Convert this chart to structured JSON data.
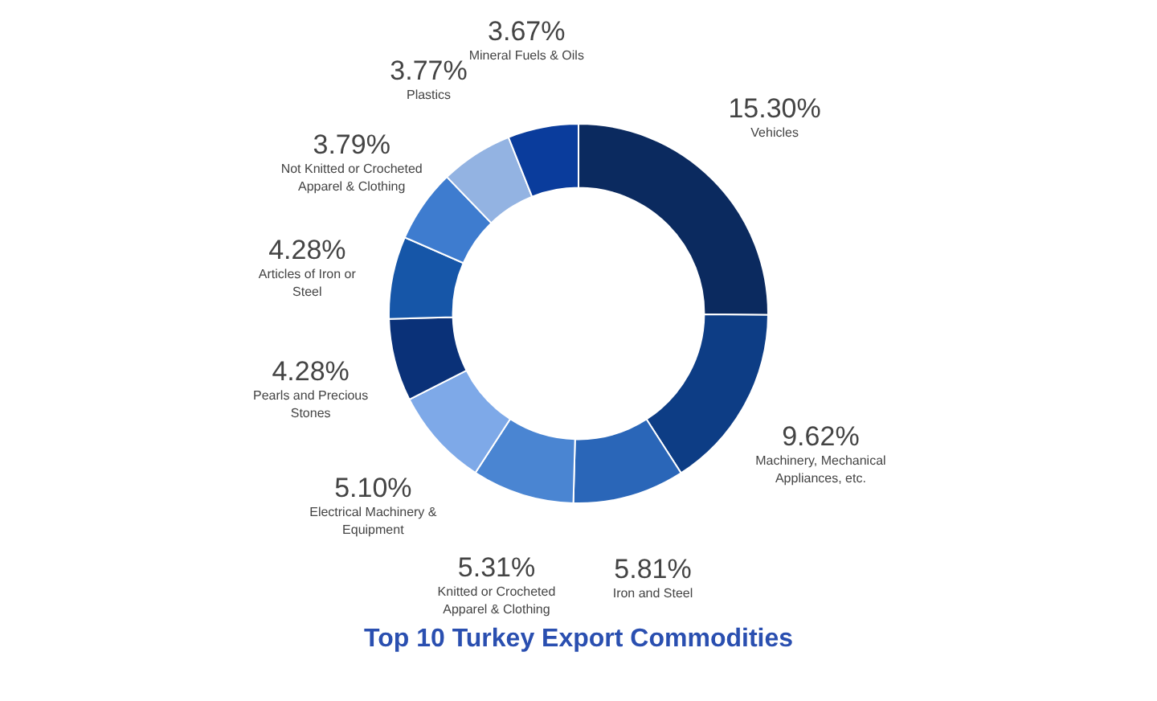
{
  "chart_data": {
    "type": "donut",
    "title": "Top 10 Turkey Export Commodities",
    "categories": [
      "Vehicles",
      "Machinery, Mechanical Appliances, etc.",
      "Iron and Steel",
      "Knitted or Crocheted Apparel & Clothing",
      "Electrical Machinery & Equipment",
      "Pearls and Precious Stones",
      "Articles of Iron or Steel",
      "Not Knitted or Crocheted Apparel & Clothing",
      "Plastics",
      "Mineral Fuels & Oils"
    ],
    "values": [
      15.3,
      9.62,
      5.81,
      5.31,
      5.1,
      4.28,
      4.28,
      3.79,
      3.77,
      3.67
    ],
    "value_labels": [
      "15.30%",
      "9.62%",
      "5.81%",
      "5.31%",
      "5.10%",
      "4.28%",
      "4.28%",
      "3.79%",
      "3.77%",
      "3.67%"
    ],
    "colors": [
      "#0b2a5f",
      "#0d3d85",
      "#2a66b8",
      "#4a85d2",
      "#7ea9e8",
      "#0a3178",
      "#1656a8",
      "#3e7ccf",
      "#93b3e2",
      "#0a3c9c"
    ]
  }
}
